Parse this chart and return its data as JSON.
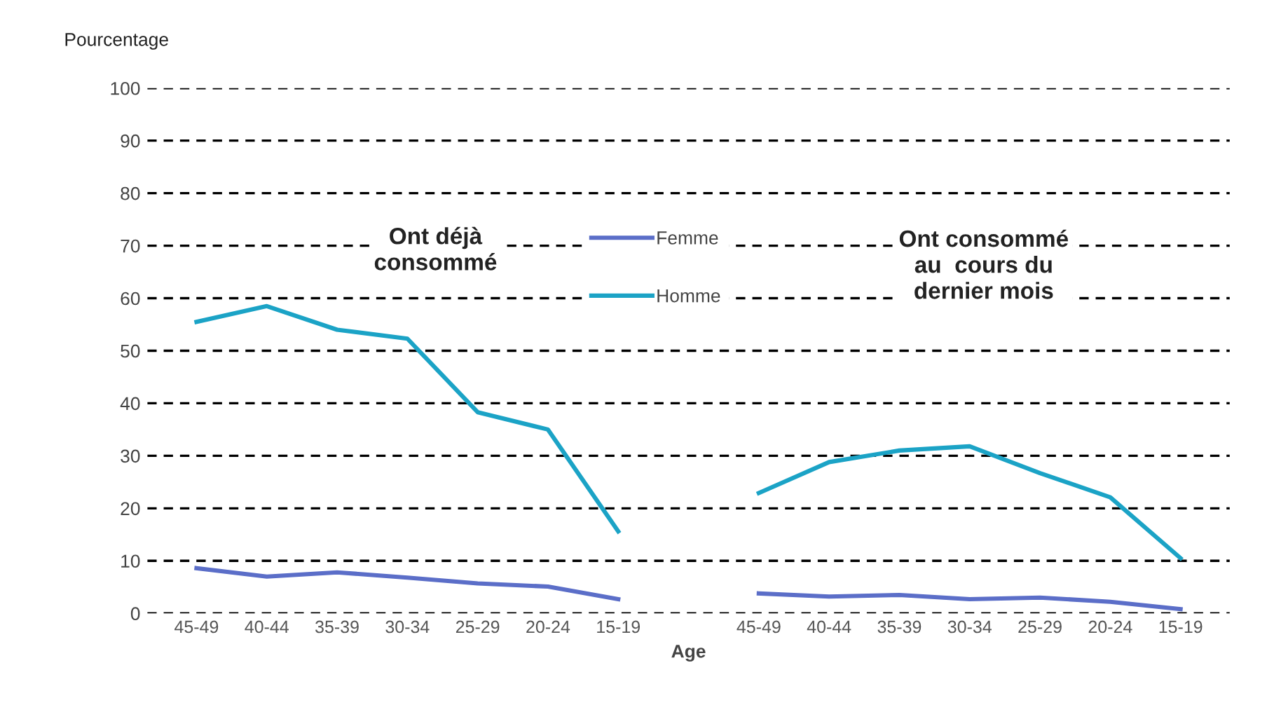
{
  "chart_data": {
    "type": "line",
    "ylabel": "Pourcentage",
    "xlabel": "Age",
    "categories": [
      "45-49",
      "40-44",
      "35-39",
      "30-34",
      "25-29",
      "20-24",
      "15-19",
      null,
      "45-49",
      "40-44",
      "35-39",
      "30-34",
      "25-29",
      "20-24",
      "15-19"
    ],
    "series": [
      {
        "name": "Femme",
        "color": "#5b6ec8",
        "values": [
          8.6,
          7,
          7.8,
          6.8,
          5.7,
          5.1,
          2.7,
          null,
          3.8,
          3.2,
          3.5,
          2.7,
          3,
          2.2,
          0.8
        ]
      },
      {
        "name": "Homme",
        "color": "#1ba3c6",
        "values": [
          55.5,
          58.5,
          54,
          52.3,
          38.3,
          35,
          15.6,
          null,
          22.9,
          28.8,
          31,
          31.8,
          26.7,
          22.1,
          10.5
        ]
      }
    ],
    "ylim": [
      0,
      100
    ],
    "yticks": [
      0,
      10,
      20,
      30,
      40,
      50,
      60,
      70,
      80,
      90,
      100
    ],
    "grid": "y",
    "legend": "top",
    "marker": "none",
    "line_style": "solid",
    "annotations": [
      "Ont déjà\nconsommé",
      "Ont consommé\nau  cours du\ndernier mois"
    ]
  }
}
